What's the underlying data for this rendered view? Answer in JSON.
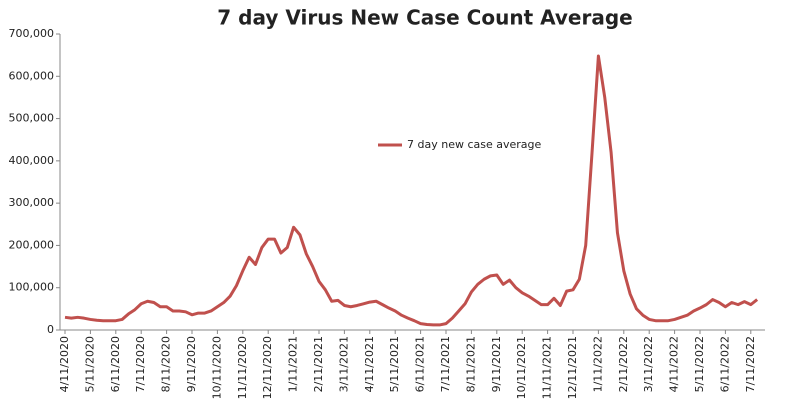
{
  "chart_data": {
    "type": "line",
    "title": "7 day Virus New Case Count Average",
    "categories": [
      "4/11/2020",
      null,
      null,
      null,
      "5/11/2020",
      null,
      null,
      null,
      "6/11/2020",
      null,
      null,
      null,
      "7/11/2020",
      null,
      null,
      null,
      "8/11/2020",
      null,
      null,
      null,
      "9/11/2020",
      null,
      null,
      null,
      "10/11/2020",
      null,
      null,
      null,
      "11/11/2020",
      null,
      null,
      null,
      "12/11/2020",
      null,
      null,
      null,
      "1/11/2021",
      null,
      null,
      null,
      "2/11/2021",
      null,
      null,
      null,
      "3/11/2021",
      null,
      null,
      null,
      "4/11/2021",
      null,
      null,
      null,
      "5/11/2021",
      null,
      null,
      null,
      "6/11/2021",
      null,
      null,
      null,
      "7/11/2021",
      null,
      null,
      null,
      "8/11/2021",
      null,
      null,
      null,
      "9/11/2021",
      null,
      null,
      null,
      "10/11/2021",
      null,
      null,
      null,
      "11/11/2021",
      null,
      null,
      null,
      "12/11/2021",
      null,
      null,
      null,
      "1/11/2022",
      null,
      null,
      null,
      "2/11/2022",
      null,
      null,
      null,
      "3/11/2022",
      null,
      null,
      null,
      "4/11/2022",
      null,
      null,
      null,
      "5/11/2022",
      null,
      null,
      null,
      "6/11/2022",
      null,
      null,
      null,
      "7/11/2022",
      null
    ],
    "series": [
      {
        "name": "7 day new case average",
        "color": "#c0504d",
        "values": [
          30000,
          28000,
          30000,
          28000,
          25000,
          23000,
          22000,
          22000,
          22000,
          25000,
          38000,
          48000,
          62000,
          68000,
          65000,
          55000,
          55000,
          45000,
          45000,
          43000,
          36000,
          40000,
          40000,
          45000,
          55000,
          65000,
          80000,
          105000,
          140000,
          172000,
          155000,
          195000,
          215000,
          215000,
          182000,
          195000,
          243000,
          225000,
          180000,
          150000,
          115000,
          95000,
          68000,
          70000,
          58000,
          55000,
          58000,
          62000,
          66000,
          68000,
          60000,
          52000,
          45000,
          35000,
          28000,
          22000,
          15000,
          13000,
          12000,
          12000,
          15000,
          28000,
          45000,
          62000,
          90000,
          108000,
          120000,
          128000,
          130000,
          108000,
          118000,
          100000,
          88000,
          80000,
          70000,
          60000,
          60000,
          75000,
          58000,
          92000,
          95000,
          120000,
          200000,
          420000,
          648000,
          550000,
          420000,
          230000,
          140000,
          85000,
          50000,
          35000,
          25000,
          22000,
          22000,
          22000,
          25000,
          30000,
          35000,
          45000,
          52000,
          60000,
          72000,
          65000,
          55000,
          65000,
          60000,
          67000,
          60000,
          72000
        ]
      }
    ],
    "ylim": [
      0,
      700000
    ],
    "yticks": [
      0,
      {
        "value": 100000,
        "label": "100,000"
      },
      {
        "value": 200000,
        "label": "200,000"
      },
      {
        "value": 300000,
        "label": "300,000"
      },
      {
        "value": 400000,
        "label": "400,000"
      },
      {
        "value": 500000,
        "label": "500,000"
      },
      {
        "value": 600000,
        "label": "600,000"
      },
      {
        "value": 700000,
        "label": "700,000"
      }
    ],
    "grid": false
  }
}
